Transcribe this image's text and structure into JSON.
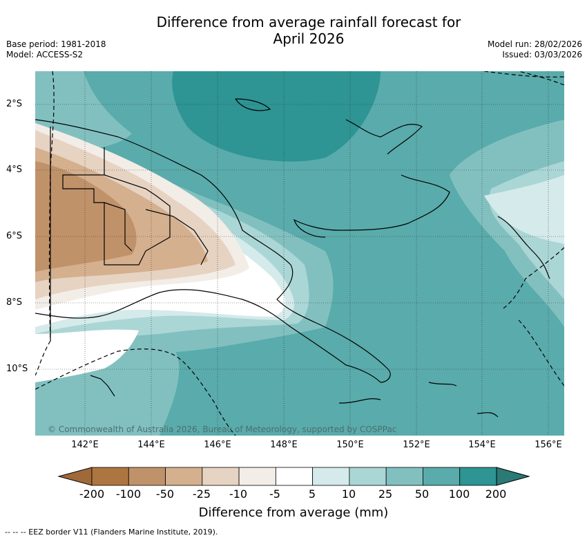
{
  "title_line1": "Difference from average rainfall forecast for",
  "title_line2": "April 2026",
  "meta_left": {
    "base_period": "Base period: 1981-2018",
    "model": "Model: ACCESS-S2"
  },
  "meta_right": {
    "model_run": "Model run: 28/02/2026",
    "issued": "Issued: 03/03/2026"
  },
  "lon_ticks": [
    "142°E",
    "144°E",
    "146°E",
    "148°E",
    "150°E",
    "152°E",
    "154°E",
    "156°E"
  ],
  "lat_ticks": [
    "2°S",
    "4°S",
    "6°S",
    "8°S",
    "10°S"
  ],
  "copyright": "© Commonwealth of Australia 2026, Bureau of Meteorology, supported by COSPPac",
  "colorbar": {
    "labels": [
      "-200",
      "-100",
      "-50",
      "-25",
      "-10",
      "-5",
      "5",
      "10",
      "25",
      "50",
      "100",
      "200"
    ],
    "colors": [
      "#a0693a",
      "#ad7640",
      "#c0926a",
      "#d4b08f",
      "#e7d3c2",
      "#f3ede7",
      "#ffffff",
      "#d5eaea",
      "#abd6d6",
      "#82c0c0",
      "#5aabab",
      "#2e9494",
      "#2a7a76"
    ],
    "title": "Difference from average (mm)"
  },
  "eez_legend": "--  --  -- EEZ border V11 (Flanders Marine Institute, 2019)."
}
